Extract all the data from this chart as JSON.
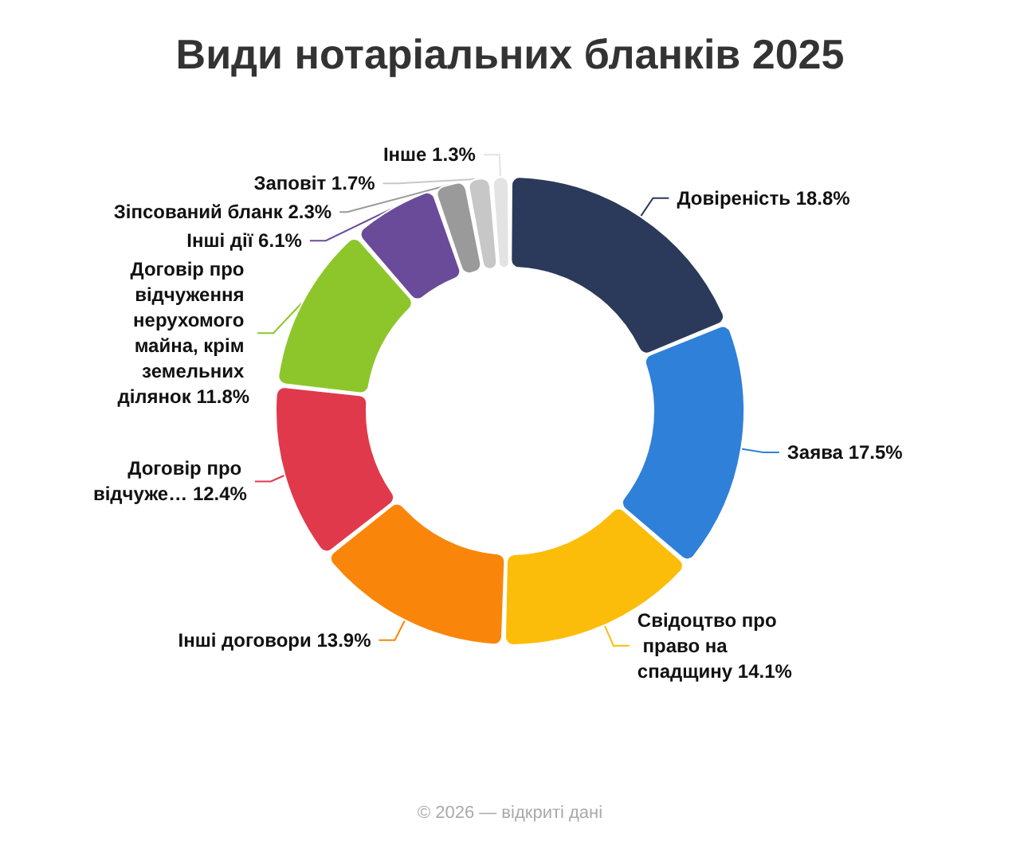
{
  "chart_data": {
    "type": "donut",
    "title": "Види нотаріальних бланків 2025",
    "categories": [
      "Довіреність",
      "Заява",
      "Свідоцтво про право на спадщину",
      "Інші договори",
      "Договір про відчуже…",
      "Договір про відчуження нерухомого майна, крім земельних ділянок",
      "Інші дії",
      "Зіпсований бланк",
      "Заповіт",
      "Інше"
    ],
    "values": [
      18.8,
      17.5,
      14.1,
      13.9,
      12.4,
      11.8,
      6.1,
      2.3,
      1.7,
      1.3
    ],
    "value_labels": [
      "18.8%",
      "17.5%",
      "14.1%",
      "13.9%",
      "12.4%",
      "11.8%",
      "6.1%",
      "2.3%",
      "1.7%",
      "1.3%"
    ],
    "colors": [
      "#2b3a5a",
      "#2f80d8",
      "#fcbd0a",
      "#f9860a",
      "#e0394b",
      "#8dc62b",
      "#6a4b99",
      "#9a9a9a",
      "#c7c7c7",
      "#e3e3e3"
    ],
    "annotations": [
      "© 2026 — відкриті дані"
    ]
  }
}
